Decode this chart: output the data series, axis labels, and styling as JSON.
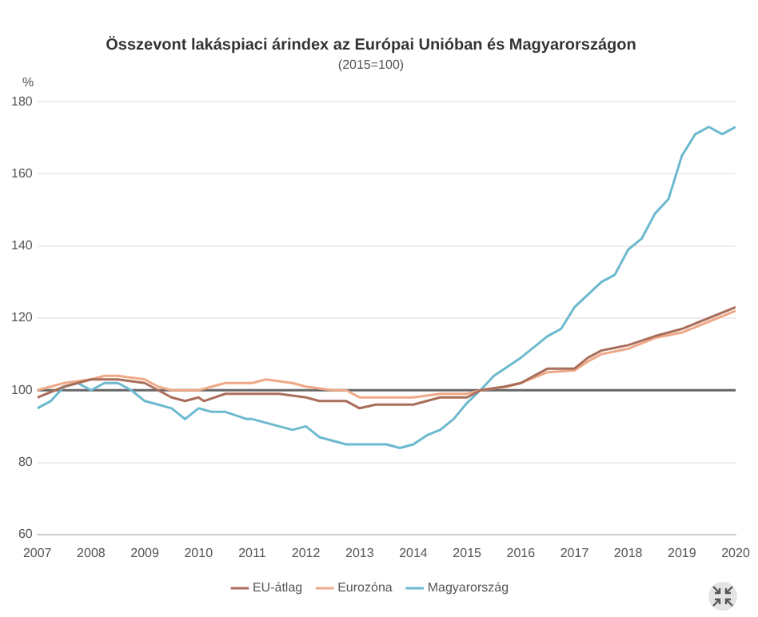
{
  "chart_data": {
    "type": "line",
    "title": "Összevont lakáspiaci árindex az Európai Unióban és Magyarországon",
    "subtitle": "(2015=100)",
    "ylabel": "%",
    "xlim": [
      2007,
      2020
    ],
    "xticks": [
      2007,
      2008,
      2009,
      2010,
      2011,
      2012,
      2013,
      2014,
      2015,
      2016,
      2017,
      2018,
      2019,
      2020
    ],
    "ylim": [
      60,
      180
    ],
    "yticks": [
      60,
      80,
      100,
      120,
      140,
      160,
      180
    ],
    "grid": "y",
    "legend": "bottom",
    "marker": "none",
    "line_style": "solid",
    "ref_lines": [
      {
        "axis": "y",
        "value": 100,
        "label": null,
        "color": "#666666"
      }
    ],
    "series": [
      {
        "name": "EU-átlag",
        "color": "#a86e5a",
        "x": [
          2007,
          2007.5,
          2008,
          2008.5,
          2009,
          2009.5,
          2009.75,
          2010,
          2010.1,
          2010.5,
          2011,
          2011.5,
          2012,
          2012.25,
          2012.75,
          2013,
          2013.3,
          2014,
          2014.5,
          2015,
          2015.25,
          2015.7,
          2016,
          2016.5,
          2017,
          2017.25,
          2017.5,
          2018,
          2018.5,
          2019,
          2019.5,
          2020
        ],
        "values": [
          98,
          101,
          103,
          103,
          102,
          98,
          97,
          98,
          97,
          99,
          99,
          99,
          98,
          97,
          97,
          95,
          96,
          96,
          98,
          98,
          100,
          101,
          102,
          106,
          106,
          109,
          111,
          112.5,
          115,
          117,
          120,
          123
        ]
      },
      {
        "name": "Eurozóna",
        "color": "#eea886",
        "x": [
          2007,
          2007.5,
          2008,
          2008.25,
          2008.5,
          2009,
          2009.25,
          2009.5,
          2010,
          2010.25,
          2010.5,
          2011,
          2011.25,
          2011.75,
          2012,
          2012.5,
          2012.75,
          2013,
          2013.5,
          2014,
          2014.5,
          2015,
          2015.25,
          2015.75,
          2016,
          2016.5,
          2017,
          2017.25,
          2017.5,
          2018,
          2018.5,
          2019,
          2019.5,
          2020
        ],
        "values": [
          100,
          102,
          103,
          104,
          104,
          103,
          101,
          100,
          100,
          101,
          102,
          102,
          103,
          102,
          101,
          100,
          100,
          98,
          98,
          98,
          99,
          99,
          100,
          101,
          102,
          105,
          105.5,
          108,
          110,
          111.5,
          114.5,
          116,
          119,
          122
        ]
      },
      {
        "name": "Magyarország",
        "color": "#6cb9cf",
        "x": [
          2007,
          2007.25,
          2007.5,
          2007.75,
          2008,
          2008.25,
          2008.5,
          2008.75,
          2009,
          2009.25,
          2009.5,
          2009.75,
          2010,
          2010.25,
          2010.5,
          2010.9,
          2011,
          2011.25,
          2011.5,
          2011.75,
          2012,
          2012.25,
          2012.5,
          2012.75,
          2013,
          2013.5,
          2013.75,
          2014,
          2014.25,
          2014.5,
          2014.75,
          2015,
          2015.25,
          2015.5,
          2016,
          2016.5,
          2016.75,
          2017,
          2017.5,
          2017.75,
          2018,
          2018.25,
          2018.5,
          2018.75,
          2019,
          2019.25,
          2019.5,
          2019.75,
          2020
        ],
        "values": [
          95,
          97,
          101,
          102,
          100,
          102,
          102,
          100,
          97,
          96,
          95,
          92,
          95,
          94,
          94,
          92,
          92,
          91,
          90,
          89,
          90,
          87,
          86,
          85,
          85,
          85,
          84,
          85,
          87.5,
          89,
          92,
          96.5,
          100,
          104,
          109,
          115,
          117,
          123,
          130,
          132,
          139,
          142,
          149,
          153,
          165,
          171,
          173,
          171,
          173
        ]
      }
    ]
  }
}
